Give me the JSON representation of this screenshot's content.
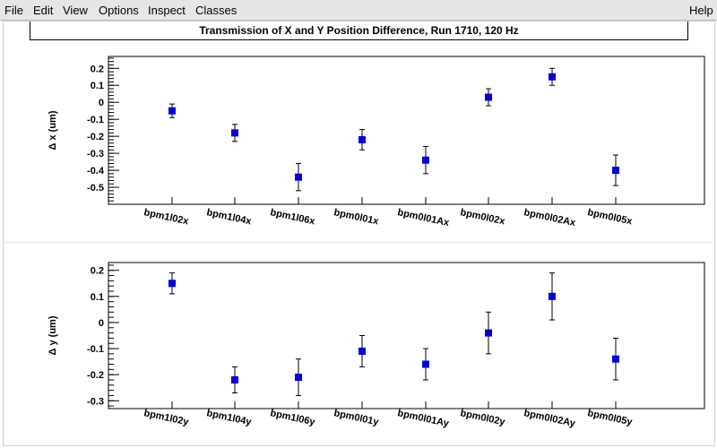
{
  "menu": {
    "file": "File",
    "edit": "Edit",
    "view": "View",
    "options": "Options",
    "inspect": "Inspect",
    "classes": "Classes",
    "help": "Help"
  },
  "title": "Transmission of X and Y Position Difference, Run 1710, 120 Hz",
  "chart_data": [
    {
      "type": "scatter",
      "ylabel": "Δ x (um)",
      "ylim": [
        -0.6,
        0.27
      ],
      "yticks": [
        0.2,
        0.1,
        0,
        -0.1,
        -0.2,
        -0.3,
        -0.4,
        -0.5
      ],
      "ytick_labels": [
        "0.2",
        "0.1",
        "0",
        "-0.1",
        "-0.2",
        "-0.3",
        "-0.4",
        "-0.5"
      ],
      "categories": [
        "bpm1l02x",
        "bpm1l04x",
        "bpm1l06x",
        "bpm0l01x",
        "bpm0l01Ax",
        "bpm0l02x",
        "bpm0l02Ax",
        "bpm0l05x"
      ],
      "series": [
        {
          "values": [
            -0.05,
            -0.18,
            -0.44,
            -0.22,
            -0.34,
            0.03,
            0.15,
            -0.4
          ],
          "errors": [
            0.04,
            0.05,
            0.08,
            0.06,
            0.08,
            0.05,
            0.05,
            0.09
          ],
          "color": "#0000dd"
        }
      ],
      "grid": false
    },
    {
      "type": "scatter",
      "ylabel": "Δ y (um)",
      "ylim": [
        -0.33,
        0.23
      ],
      "yticks": [
        0.2,
        0.1,
        0,
        -0.1,
        -0.2,
        -0.3
      ],
      "ytick_labels": [
        "0.2",
        "0.1",
        "0",
        "-0.1",
        "-0.2",
        "-0.3"
      ],
      "categories": [
        "bpm1l02y",
        "bpm1l04y",
        "bpm1l06y",
        "bpm0l01y",
        "bpm0l01Ay",
        "bpm0l02y",
        "bpm0l02Ay",
        "bpm0l05y"
      ],
      "series": [
        {
          "values": [
            0.15,
            -0.22,
            -0.21,
            -0.11,
            -0.16,
            -0.04,
            0.1,
            -0.14
          ],
          "errors": [
            0.04,
            0.05,
            0.07,
            0.06,
            0.06,
            0.08,
            0.09,
            0.08
          ],
          "color": "#0000dd"
        }
      ],
      "grid": false
    }
  ]
}
